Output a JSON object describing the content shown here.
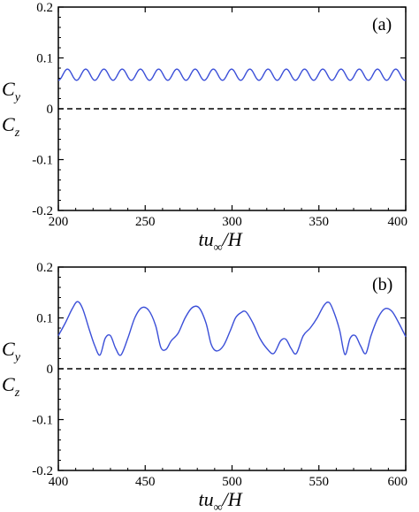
{
  "chart_data": [
    {
      "type": "line",
      "panel_label": "(a)",
      "xlabel": {
        "main": "tu",
        "sub": "∞",
        "tail": "/H"
      },
      "ylabel_top": {
        "main": "C",
        "sub": "y"
      },
      "ylabel_bottom": {
        "main": "C",
        "sub": "z"
      },
      "xlim": [
        200,
        400
      ],
      "ylim": [
        -0.2,
        0.2
      ],
      "x_ticks": [
        "200",
        "250",
        "300",
        "350",
        "400"
      ],
      "y_ticks": [
        "-0.2",
        "-0.1",
        "0",
        "0.1",
        "0.2"
      ],
      "series": [
        {
          "style": "solid",
          "color": "#3b4fd8",
          "oscillation": {
            "mean": 0.067,
            "amplitude": 0.011,
            "period": 10.5
          }
        },
        {
          "style": "dashed",
          "color": "#000000",
          "constant": 0.0
        }
      ]
    },
    {
      "type": "line",
      "panel_label": "(b)",
      "xlabel": {
        "main": "tu",
        "sub": "∞",
        "tail": "/H"
      },
      "ylabel_top": {
        "main": "C",
        "sub": "y"
      },
      "ylabel_bottom": {
        "main": "C",
        "sub": "z"
      },
      "xlim": [
        400,
        600
      ],
      "ylim": [
        -0.2,
        0.2
      ],
      "x_ticks": [
        "400",
        "450",
        "500",
        "550",
        "600"
      ],
      "y_ticks": [
        "-0.2",
        "-0.1",
        "0",
        "0.1",
        "0.2"
      ],
      "series": [
        {
          "style": "solid",
          "color": "#3b4fd8",
          "x": [
            400,
            404,
            408,
            411,
            414,
            418,
            421,
            424,
            427,
            430,
            433,
            436,
            440,
            444,
            448,
            452,
            456,
            459,
            462,
            465,
            469,
            473,
            477,
            481,
            485,
            488,
            491,
            495,
            499,
            502,
            505,
            508,
            512,
            516,
            520,
            524,
            528,
            531,
            534,
            537,
            541,
            545,
            549,
            553,
            556,
            559,
            562,
            565,
            568,
            571,
            574,
            577,
            580,
            584,
            588,
            592,
            596,
            600
          ],
          "y": [
            0.065,
            0.09,
            0.118,
            0.132,
            0.118,
            0.075,
            0.045,
            0.027,
            0.06,
            0.065,
            0.04,
            0.027,
            0.06,
            0.1,
            0.12,
            0.115,
            0.085,
            0.042,
            0.038,
            0.055,
            0.07,
            0.1,
            0.12,
            0.12,
            0.09,
            0.048,
            0.035,
            0.045,
            0.075,
            0.1,
            0.11,
            0.112,
            0.09,
            0.06,
            0.04,
            0.03,
            0.055,
            0.058,
            0.04,
            0.03,
            0.065,
            0.08,
            0.1,
            0.125,
            0.13,
            0.108,
            0.075,
            0.028,
            0.06,
            0.065,
            0.045,
            0.03,
            0.065,
            0.1,
            0.118,
            0.113,
            0.09,
            0.063
          ]
        },
        {
          "style": "dashed",
          "color": "#000000",
          "constant": 0.0
        }
      ]
    }
  ]
}
